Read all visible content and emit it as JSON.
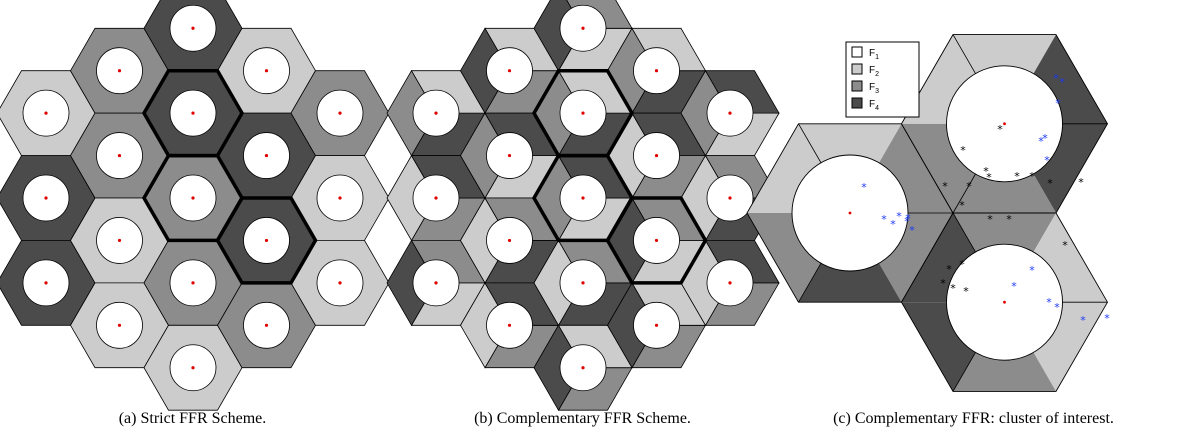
{
  "colors": {
    "F1": "#ffffff",
    "F2": "#cccccc",
    "F3": "#8c8c8c",
    "F4": "#4b4b4b",
    "edge": "#000000",
    "center_dot": "#e00000",
    "user_blue": "#1c39f0",
    "user_black": "#000000"
  },
  "legend": {
    "items": [
      {
        "key": "F1",
        "label": "F",
        "sub": "1"
      },
      {
        "key": "F2",
        "label": "F",
        "sub": "2"
      },
      {
        "key": "F3",
        "label": "F",
        "sub": "3"
      },
      {
        "key": "F4",
        "label": "F",
        "sub": "4"
      }
    ]
  },
  "captions": {
    "a": "(a) Strict FFR Scheme.",
    "b": "(b) Complementary FFR Scheme.",
    "c": "(c) Complementary FFR: cluster of interest."
  },
  "panel_a": {
    "ring_colors": [
      "F2",
      "F4",
      "F4",
      "F3",
      "F3",
      "F2",
      "F2",
      "F4",
      "F4",
      "F3",
      "F3",
      "F2",
      "F2",
      "F4",
      "F4",
      "F3",
      "F3",
      "F2",
      "F2"
    ]
  },
  "panel_b": {
    "sector_colors": [
      [
        "F4",
        "F3",
        "F2"
      ],
      [
        "F3",
        "F2",
        "F4"
      ],
      [
        "F2",
        "F4",
        "F3"
      ],
      [
        "F3",
        "F4",
        "F2"
      ],
      [
        "F2",
        "F3",
        "F4"
      ],
      [
        "F4",
        "F2",
        "F3"
      ],
      [
        "F3",
        "F2",
        "F4"
      ],
      [
        "F2",
        "F4",
        "F3"
      ],
      [
        "F4",
        "F3",
        "F2"
      ],
      [
        "F2",
        "F3",
        "F4"
      ],
      [
        "F4",
        "F2",
        "F3"
      ],
      [
        "F3",
        "F4",
        "F2"
      ],
      [
        "F4",
        "F3",
        "F2"
      ],
      [
        "F3",
        "F2",
        "F4"
      ],
      [
        "F2",
        "F4",
        "F3"
      ],
      [
        "F3",
        "F4",
        "F2"
      ],
      [
        "F2",
        "F3",
        "F4"
      ],
      [
        "F4",
        "F2",
        "F3"
      ],
      [
        "F3",
        "F2",
        "F4"
      ]
    ]
  }
}
